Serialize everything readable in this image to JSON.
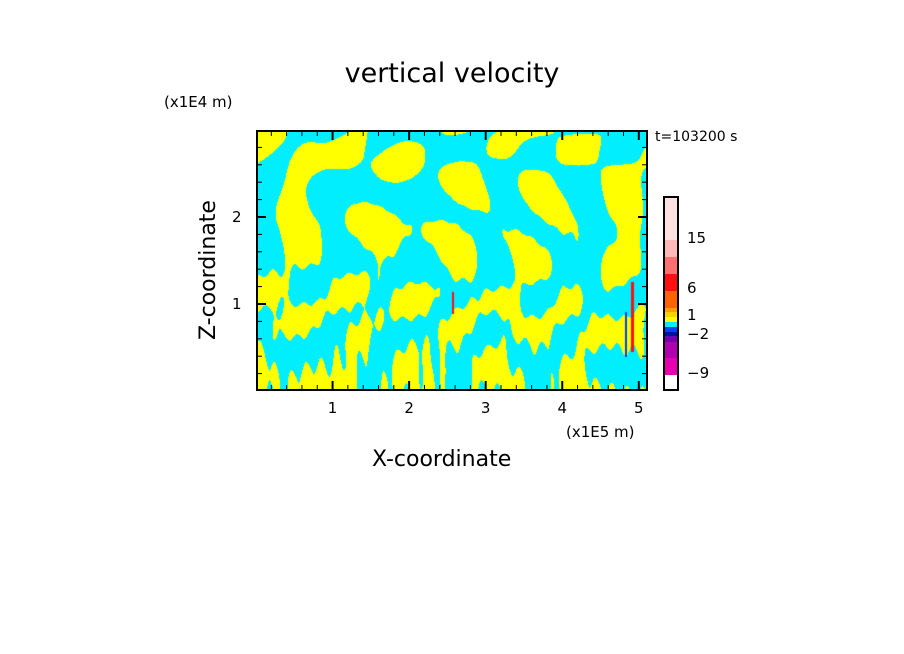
{
  "chart_data": {
    "type": "heatmap",
    "title": "vertical velocity",
    "xlabel": "X-coordinate",
    "ylabel": "Z-coordinate",
    "x_unit": "(x1E5 m)",
    "y_unit": "(x1E4 m)",
    "annotation": "t=103200 s",
    "xlim": [
      0,
      5.12
    ],
    "ylim": [
      0,
      3
    ],
    "x_ticks": [
      "1",
      "2",
      "3",
      "4",
      "5"
    ],
    "x_tick_values": [
      1,
      2,
      3,
      4,
      5
    ],
    "y_ticks": [
      "1",
      "2"
    ],
    "y_tick_values": [
      1,
      2
    ],
    "grid": false,
    "dominant_colors": {
      "positive": "#ffff00",
      "negative": "#00eeff"
    },
    "colorbar": {
      "labels": [
        "15",
        "6",
        "1",
        "-2",
        "-9"
      ],
      "label_values": [
        15,
        6,
        1,
        -2,
        -9
      ],
      "colors_top_to_bottom": [
        "#ffe0e0",
        "#ffb8b8",
        "#ff7070",
        "#ff1010",
        "#ff6400",
        "#ffa000",
        "#ffd000",
        "#ffff00",
        "#00eeff",
        "#0040ff",
        "#0010a0",
        "#7000b0",
        "#b000b0",
        "#e800b0"
      ]
    }
  }
}
